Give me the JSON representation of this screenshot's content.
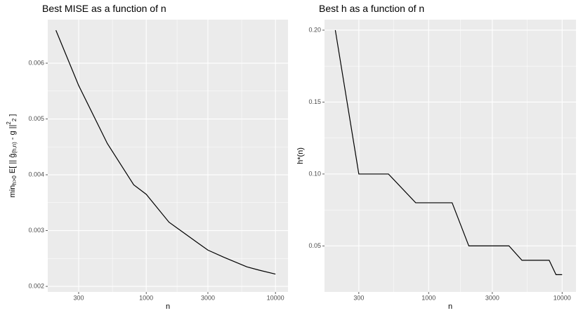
{
  "chart_data": [
    {
      "type": "line",
      "title": "Best MISE as a function of n",
      "xlabel": "n",
      "ylabel": [
        {
          "text": "min",
          "pos": "base"
        },
        {
          "text": "h>0",
          "pos": "sub"
        },
        {
          "text": " E[ || ",
          "pos": "base"
        },
        {
          "text": "ĝ",
          "pos": "base"
        },
        {
          "text": "(h,n)",
          "pos": "sub"
        },
        {
          "text": " - g ||",
          "pos": "base"
        },
        {
          "text": "2",
          "pos": "sup"
        },
        {
          "text": "2",
          "pos": "sub"
        },
        {
          "text": " ]",
          "pos": "base"
        }
      ],
      "x": [
        200,
        300,
        500,
        800,
        1000,
        1500,
        2500,
        3000,
        4000,
        6000,
        7500,
        10000
      ],
      "series": [
        {
          "name": "MISE",
          "color": "#000000",
          "values": [
            0.00659,
            0.0056,
            0.00456,
            0.00382,
            0.00365,
            0.00315,
            0.00278,
            0.00265,
            0.00252,
            0.00235,
            0.00229,
            0.00222
          ]
        }
      ],
      "xlog": true,
      "xlim": [
        173,
        12500
      ],
      "xticks": [
        300,
        1000,
        3000,
        10000
      ],
      "ylim": [
        0.0019,
        0.00678
      ],
      "yticks": [
        0.002,
        0.003,
        0.004,
        0.005,
        0.006
      ],
      "grid": true
    },
    {
      "type": "line",
      "title": "Best h as a function of n",
      "xlabel": "n",
      "ylabel": [
        {
          "text": "h*(n)",
          "pos": "base"
        }
      ],
      "x": [
        200,
        300,
        500,
        800,
        1500,
        2000,
        4000,
        5000,
        8000,
        9000,
        10000
      ],
      "series": [
        {
          "name": "h",
          "color": "#000000",
          "values": [
            0.2,
            0.1,
            0.1,
            0.08,
            0.08,
            0.05,
            0.05,
            0.04,
            0.04,
            0.03,
            0.03
          ]
        }
      ],
      "xlog": true,
      "xlim": [
        166,
        12700
      ],
      "xticks": [
        300,
        1000,
        3000,
        10000
      ],
      "ylim": [
        0.018,
        0.2073
      ],
      "yticks": [
        {
          "value": 0.05,
          "label": "0.05"
        },
        {
          "value": 0.1,
          "label": "0.10"
        },
        {
          "value": 0.15,
          "label": "0.15"
        },
        {
          "value": 0.2,
          "label": "0.20"
        }
      ],
      "grid": true
    }
  ]
}
